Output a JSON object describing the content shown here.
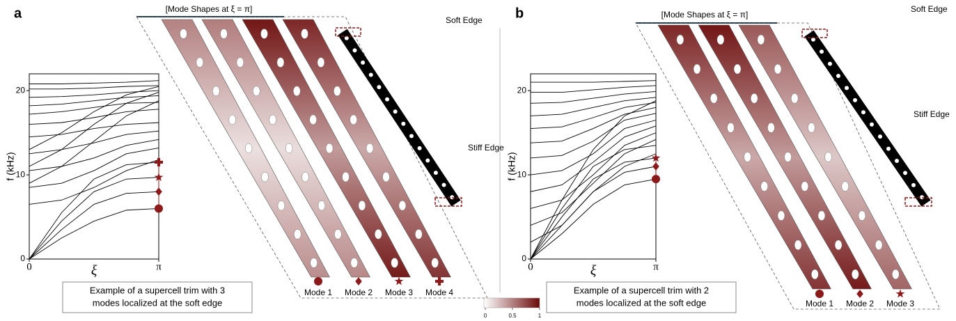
{
  "panels": [
    {
      "label": "a",
      "mode_shapes_title": "[Mode Shapes at ξ = π]",
      "soft_edge": "Soft Edge",
      "stiff_edge": "Stiff Edge",
      "caption": [
        "Example of a supercell trim with 3",
        "modes localized at the soft edge"
      ]
    },
    {
      "label": "b",
      "mode_shapes_title": "[Mode Shapes at ξ = π]",
      "soft_edge": "Soft Edge",
      "stiff_edge": "Stiff Edge",
      "caption": [
        "Example of a supercell trim with 2",
        "modes localized at the soft edge"
      ]
    }
  ],
  "chart_data": [
    {
      "type": "line",
      "ylabel": "f (kHz)",
      "xlabel": "ξ",
      "line_color": "#000000",
      "x": [
        0,
        0.785,
        1.571,
        2.356,
        3.142
      ],
      "xlim": [
        0,
        3.142
      ],
      "xticks": [
        0,
        {
          "value": 3.142,
          "label": "π"
        }
      ],
      "ylim": [
        0,
        22
      ],
      "yticks": [
        0,
        10,
        20
      ],
      "series": [
        {
          "values": [
            0,
            2.5,
            4.5,
            5.8,
            6.0
          ]
        },
        {
          "values": [
            0,
            3.5,
            6.5,
            7.8,
            8.0
          ]
        },
        {
          "values": [
            0,
            4.5,
            8,
            9.5,
            9.7
          ]
        },
        {
          "values": [
            0,
            5.5,
            9.5,
            11.2,
            11.5
          ]
        },
        {
          "values": [
            6.5,
            7,
            8.5,
            10.5,
            11.8
          ]
        },
        {
          "values": [
            8.5,
            9,
            10.5,
            12.5,
            13.2
          ]
        },
        {
          "values": [
            10.5,
            11,
            12,
            13.5,
            14.2
          ]
        },
        {
          "values": [
            12.5,
            13,
            13.8,
            14.8,
            15.2
          ]
        },
        {
          "values": [
            14.5,
            14.8,
            15.5,
            16,
            16.2
          ]
        },
        {
          "values": [
            16,
            16.2,
            16.8,
            17.5,
            17.8
          ]
        },
        {
          "values": [
            17.2,
            17.5,
            18,
            18.5,
            18.6
          ]
        },
        {
          "values": [
            18.2,
            18.4,
            18.8,
            19.2,
            19.4
          ]
        },
        {
          "values": [
            19.2,
            19.3,
            19.5,
            19.8,
            20
          ]
        },
        {
          "values": [
            20.2,
            20.2,
            20.3,
            20.5,
            20.6
          ]
        },
        {
          "values": [
            20.8,
            20.8,
            20.9,
            21,
            21.2
          ]
        },
        {
          "values": [
            13,
            15,
            17.5,
            19.5,
            20.5
          ]
        },
        {
          "values": [
            11,
            13,
            16,
            18.5,
            19.8
          ]
        },
        {
          "values": [
            9,
            11,
            14,
            17,
            18.8
          ]
        }
      ],
      "modes": [
        {
          "name": "Mode 1",
          "marker": "circle",
          "color": "#8b1a1a",
          "value": 6
        },
        {
          "name": "Mode 2",
          "marker": "diamond",
          "color": "#8b1a1a",
          "value": 8
        },
        {
          "name": "Mode 3",
          "marker": "star",
          "color": "#8b1a1a",
          "value": 9.7
        },
        {
          "name": "Mode 4",
          "marker": "cross",
          "color": "#8b1a1a",
          "value": 11.5
        }
      ]
    },
    {
      "type": "line",
      "ylabel": "f (kHz)",
      "xlabel": "ξ",
      "line_color": "#000000",
      "x": [
        0,
        0.785,
        1.571,
        2.356,
        3.142
      ],
      "xlim": [
        0,
        3.142
      ],
      "xticks": [
        0,
        {
          "value": 3.142,
          "label": "π"
        }
      ],
      "ylim": [
        0,
        22
      ],
      "yticks": [
        0,
        10,
        20
      ],
      "series": [
        {
          "values": [
            0,
            3,
            6.5,
            8.8,
            9.5
          ]
        },
        {
          "values": [
            0,
            4,
            8,
            10.3,
            11
          ]
        },
        {
          "values": [
            0,
            5,
            9.5,
            11.5,
            12
          ]
        },
        {
          "values": [
            0,
            6,
            11,
            13,
            13.5
          ]
        },
        {
          "values": [
            2,
            4,
            8,
            11,
            12.5
          ]
        },
        {
          "values": [
            4,
            5.5,
            9,
            12.5,
            14.2
          ]
        },
        {
          "values": [
            6,
            7,
            10,
            13.5,
            15
          ]
        },
        {
          "values": [
            8,
            8.8,
            11.5,
            14.5,
            15.8
          ]
        },
        {
          "values": [
            10,
            10.5,
            12.5,
            15.5,
            16.5
          ]
        },
        {
          "values": [
            12,
            12.3,
            14,
            16.5,
            17.3
          ]
        },
        {
          "values": [
            13.8,
            14,
            15.5,
            17.2,
            18
          ]
        },
        {
          "values": [
            15.5,
            15.7,
            16.8,
            18,
            18.6
          ]
        },
        {
          "values": [
            17,
            17.2,
            18,
            18.8,
            19.2
          ]
        },
        {
          "values": [
            18.5,
            18.6,
            19.1,
            19.6,
            19.9
          ]
        },
        {
          "values": [
            19.8,
            19.8,
            20.1,
            20.4,
            20.6
          ]
        },
        {
          "values": [
            21,
            21,
            21,
            21.1,
            21.2
          ]
        },
        {
          "values": [
            0,
            7,
            13,
            17,
            18.8
          ]
        }
      ],
      "modes": [
        {
          "name": "Mode 1",
          "marker": "circle",
          "color": "#8b1a1a",
          "value": 9.5
        },
        {
          "name": "Mode 2",
          "marker": "diamond",
          "color": "#8b1a1a",
          "value": 11
        },
        {
          "name": "Mode 3",
          "marker": "star",
          "color": "#8b1a1a",
          "value": 12
        }
      ]
    }
  ],
  "colorbar": {
    "colors": [
      "#ffffff",
      "#6b0a0a"
    ],
    "ticks": [
      0,
      0.5,
      1
    ]
  }
}
